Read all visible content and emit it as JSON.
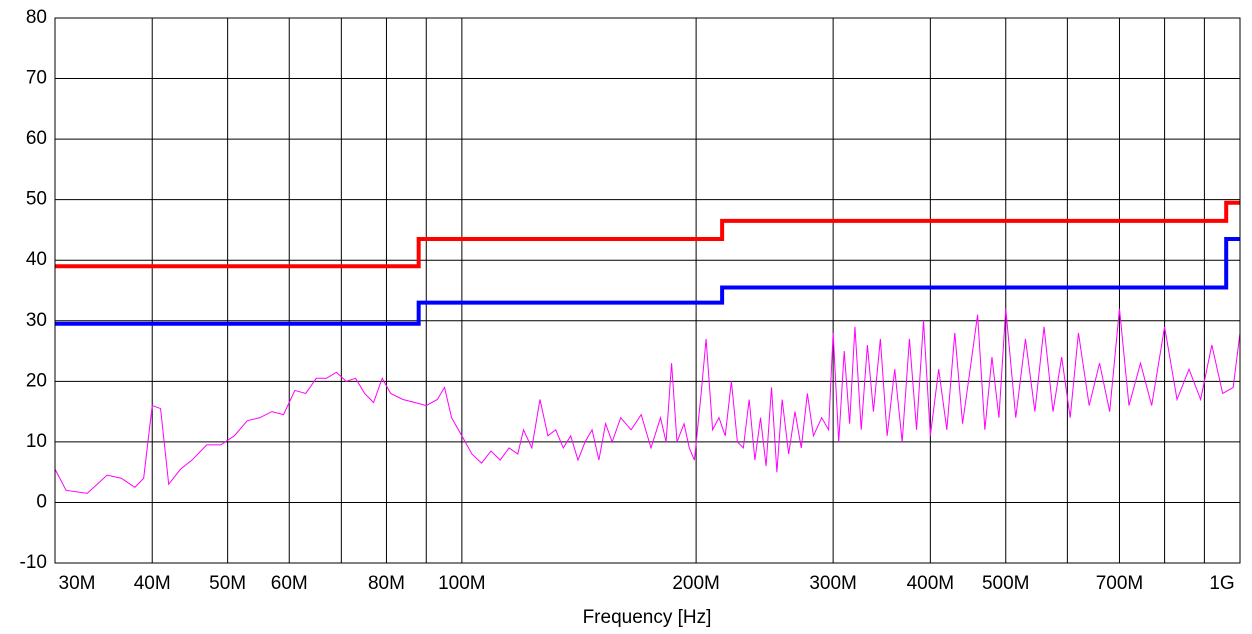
{
  "chart_data": {
    "type": "line",
    "x_label": "Frequency [Hz]",
    "log_x": true,
    "grid": true,
    "xlim": [
      30000000.0,
      1000000000.0
    ],
    "ylim": [
      -10,
      80
    ],
    "yticks": [
      -10,
      0,
      10,
      20,
      30,
      40,
      50,
      60,
      70,
      80
    ],
    "xticks": [
      {
        "value": 30000000.0,
        "label": "30M"
      },
      {
        "value": 40000000.0,
        "label": "40M"
      },
      {
        "value": 50000000.0,
        "label": "50M"
      },
      {
        "value": 60000000.0,
        "label": "60M"
      },
      {
        "value": 80000000.0,
        "label": "80M"
      },
      {
        "value": 100000000.0,
        "label": "100M"
      },
      {
        "value": 200000000.0,
        "label": "200M"
      },
      {
        "value": 300000000.0,
        "label": "300M"
      },
      {
        "value": 400000000.0,
        "label": "400M"
      },
      {
        "value": 500000000.0,
        "label": "500M"
      },
      {
        "value": 700000000.0,
        "label": "700M"
      },
      {
        "value": 1000000000.0,
        "label": "1G"
      }
    ],
    "xticks_minor": [
      70000000.0,
      90000000.0,
      600000000.0,
      800000000.0,
      900000000.0
    ],
    "series": [
      {
        "color": "#ff0000",
        "width": 4,
        "x": [
          30000000.0,
          88000000.0,
          88000000.0,
          216000000.0,
          216000000.0,
          960000000.0,
          960000000.0,
          1000000000.0
        ],
        "values": [
          39,
          39,
          43.5,
          43.5,
          46.5,
          46.5,
          49.5,
          49.5
        ]
      },
      {
        "color": "#0000ff",
        "width": 4,
        "x": [
          30000000.0,
          88000000.0,
          88000000.0,
          216000000.0,
          216000000.0,
          960000000.0,
          960000000.0,
          1000000000.0
        ],
        "values": [
          29.5,
          29.5,
          33,
          33,
          35.5,
          35.5,
          43.5,
          43.5
        ]
      },
      {
        "color": "#ff00ff",
        "width": 1,
        "x": [
          30000000.0,
          31000000.0,
          33000000.0,
          35000000.0,
          36500000.0,
          38000000.0,
          39000000.0,
          40000000.0,
          41000000.0,
          42000000.0,
          43500000.0,
          45000000.0,
          47000000.0,
          49000000.0,
          51000000.0,
          53000000.0,
          55000000.0,
          57000000.0,
          59000000.0,
          61000000.0,
          63000000.0,
          65000000.0,
          67000000.0,
          69000000.0,
          71000000.0,
          73000000.0,
          75000000.0,
          77000000.0,
          79000000.0,
          81000000.0,
          84000000.0,
          87000000.0,
          90000000.0,
          93000000.0,
          95000000.0,
          97000000.0,
          100000000.0,
          103000000.0,
          106000000.0,
          109000000.0,
          112000000.0,
          115000000.0,
          118000000.0,
          120000000.0,
          123000000.0,
          126000000.0,
          129000000.0,
          132000000.0,
          135000000.0,
          138000000.0,
          141000000.0,
          144000000.0,
          147000000.0,
          150000000.0,
          153000000.0,
          156000000.0,
          160000000.0,
          165000000.0,
          170000000.0,
          175000000.0,
          180000000.0,
          183000000.0,
          186000000.0,
          189000000.0,
          193000000.0,
          196000000.0,
          199000000.0,
          203000000.0,
          206000000.0,
          210000000.0,
          214000000.0,
          218000000.0,
          222000000.0,
          226000000.0,
          230000000.0,
          234000000.0,
          238000000.0,
          242000000.0,
          246000000.0,
          250000000.0,
          254000000.0,
          258000000.0,
          263000000.0,
          268000000.0,
          273000000.0,
          278000000.0,
          283000000.0,
          290000000.0,
          296000000.0,
          300000000.0,
          305000000.0,
          310000000.0,
          315000000.0,
          320000000.0,
          326000000.0,
          332000000.0,
          338000000.0,
          345000000.0,
          352000000.0,
          360000000.0,
          368000000.0,
          376000000.0,
          384000000.0,
          392000000.0,
          400000000.0,
          410000000.0,
          420000000.0,
          430000000.0,
          440000000.0,
          450000000.0,
          460000000.0,
          470000000.0,
          480000000.0,
          490000000.0,
          500000000.0,
          515000000.0,
          530000000.0,
          545000000.0,
          560000000.0,
          575000000.0,
          590000000.0,
          605000000.0,
          620000000.0,
          640000000.0,
          660000000.0,
          680000000.0,
          700000000.0,
          720000000.0,
          745000000.0,
          770000000.0,
          800000000.0,
          830000000.0,
          860000000.0,
          890000000.0,
          920000000.0,
          950000000.0,
          980000000.0,
          1000000000.0
        ],
        "values": [
          5.5,
          2,
          1.5,
          4.5,
          4,
          2.5,
          4,
          16,
          15.5,
          3,
          5.5,
          7,
          9.5,
          9.5,
          11,
          13.5,
          14,
          15,
          14.5,
          18.5,
          18,
          20.5,
          20.5,
          21.5,
          20,
          20.5,
          18,
          16.5,
          20.5,
          18,
          17,
          16.5,
          16,
          17,
          19,
          14,
          11,
          8,
          6.5,
          8.5,
          7,
          9,
          8,
          12,
          9,
          17,
          11,
          12,
          9,
          11,
          7,
          10,
          12,
          7,
          13,
          10,
          14,
          12,
          14.5,
          9,
          14,
          10,
          23,
          10,
          13,
          9,
          7,
          18,
          27,
          12,
          14,
          11,
          20,
          10,
          9,
          17,
          7,
          14,
          6,
          19,
          5,
          17,
          8,
          15,
          9,
          18,
          11,
          14,
          12,
          28,
          10,
          25,
          13,
          29,
          12,
          26,
          15,
          27,
          11,
          22,
          10,
          27,
          12,
          30,
          11,
          22,
          12,
          28,
          13,
          22,
          31,
          12,
          24,
          14,
          32,
          14,
          27,
          15,
          29,
          15,
          24,
          14,
          28,
          16,
          23,
          15,
          32,
          16,
          23,
          16,
          29,
          17,
          22,
          17,
          26,
          18,
          19,
          28
        ]
      }
    ]
  }
}
